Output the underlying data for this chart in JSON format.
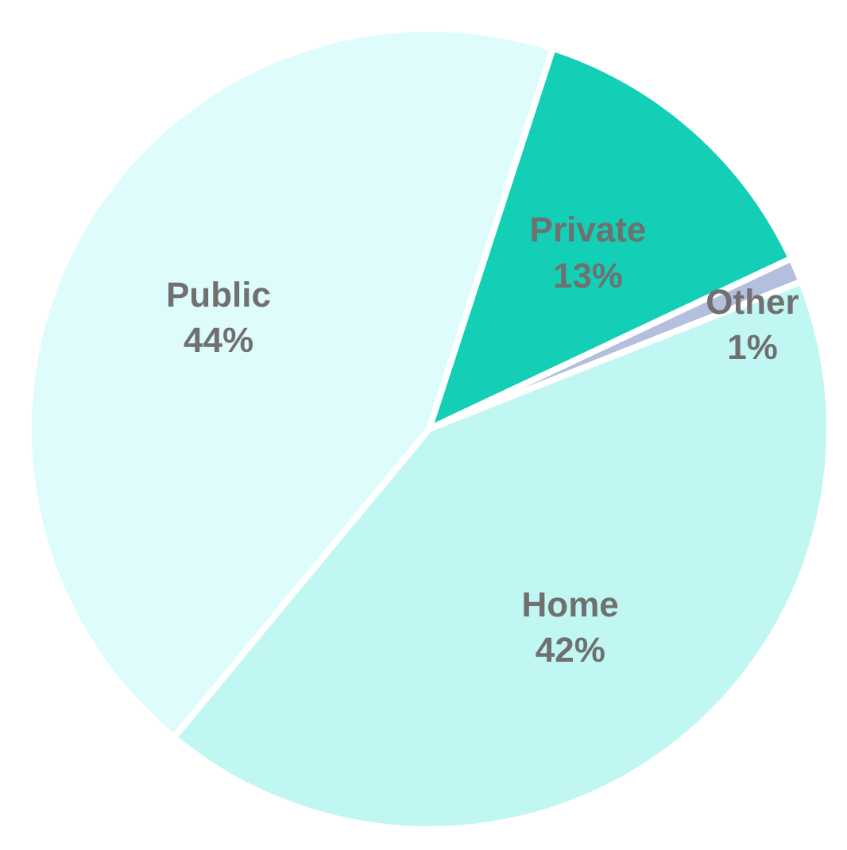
{
  "chart_data": {
    "type": "pie",
    "categories": [
      "Private",
      "Other",
      "Home",
      "Public"
    ],
    "values": [
      13,
      1,
      42,
      44
    ],
    "value_labels": [
      "13%",
      "1%",
      "42%",
      "44%"
    ],
    "colors": [
      "#12cfb6",
      "#b4bedd",
      "#c0f7f2",
      "#dffcfd"
    ]
  }
}
